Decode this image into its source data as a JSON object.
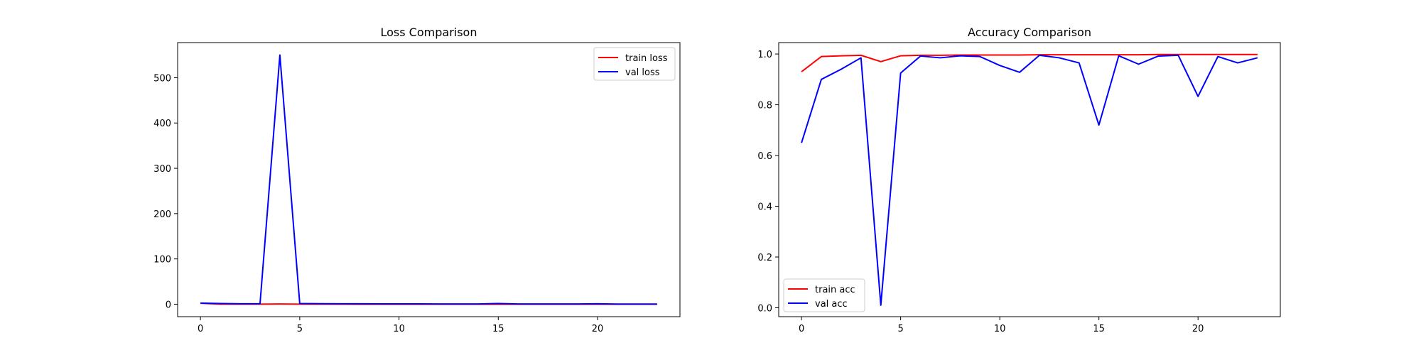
{
  "chart_data": [
    {
      "type": "line",
      "title": "Loss Comparison",
      "xlabel": "",
      "ylabel": "",
      "xlim": [
        -1.15,
        24.15
      ],
      "ylim": [
        -27.5,
        577.5
      ],
      "xticks": [
        0,
        5,
        10,
        15,
        20
      ],
      "yticks": [
        0,
        100,
        200,
        300,
        400,
        500
      ],
      "grid": false,
      "legend_position": "top-right",
      "x": [
        0,
        1,
        2,
        3,
        4,
        5,
        6,
        7,
        8,
        9,
        10,
        11,
        12,
        13,
        14,
        15,
        16,
        17,
        18,
        19,
        20,
        21,
        22,
        23
      ],
      "series": [
        {
          "name": "train loss",
          "color": "#ff0000",
          "values": [
            2.0,
            0.2,
            0.1,
            0.1,
            0.5,
            0.1,
            0.05,
            0.04,
            0.03,
            0.03,
            0.02,
            0.02,
            0.02,
            0.02,
            0.02,
            0.02,
            0.01,
            0.01,
            0.01,
            0.01,
            0.01,
            0.01,
            0.01,
            0.01
          ]
        },
        {
          "name": "val loss",
          "color": "#0000ff",
          "values": [
            2.5,
            1.5,
            1.0,
            1.0,
            550,
            1.5,
            1.2,
            1.0,
            0.9,
            0.8,
            0.8,
            0.7,
            0.6,
            0.6,
            0.6,
            1.5,
            0.5,
            0.5,
            0.5,
            0.5,
            1.0,
            0.4,
            0.4,
            0.3
          ]
        }
      ]
    },
    {
      "type": "line",
      "title": "Accuracy Comparison",
      "xlabel": "",
      "ylabel": "",
      "xlim": [
        -1.15,
        24.15
      ],
      "ylim": [
        -0.035,
        1.045
      ],
      "xticks": [
        0,
        5,
        10,
        15,
        20
      ],
      "yticks": [
        0.0,
        0.2,
        0.4,
        0.6,
        0.8,
        1.0
      ],
      "ytick_labels": [
        "0.0",
        "0.2",
        "0.4",
        "0.6",
        "0.8",
        "1.0"
      ],
      "grid": false,
      "legend_position": "bottom-left",
      "x": [
        0,
        1,
        2,
        3,
        4,
        5,
        6,
        7,
        8,
        9,
        10,
        11,
        12,
        13,
        14,
        15,
        16,
        17,
        18,
        19,
        20,
        21,
        22,
        23
      ],
      "series": [
        {
          "name": "train acc",
          "color": "#ff0000",
          "values": [
            0.93,
            0.99,
            0.993,
            0.995,
            0.97,
            0.993,
            0.995,
            0.995,
            0.996,
            0.996,
            0.996,
            0.996,
            0.997,
            0.997,
            0.997,
            0.997,
            0.997,
            0.997,
            0.998,
            0.998,
            0.998,
            0.998,
            0.998,
            0.998
          ]
        },
        {
          "name": "val acc",
          "color": "#0000ff",
          "values": [
            0.65,
            0.9,
            0.94,
            0.985,
            0.01,
            0.925,
            0.992,
            0.985,
            0.993,
            0.99,
            0.955,
            0.928,
            0.995,
            0.985,
            0.965,
            0.72,
            0.993,
            0.96,
            0.992,
            0.995,
            0.833,
            0.99,
            0.965,
            0.985
          ]
        }
      ]
    }
  ]
}
